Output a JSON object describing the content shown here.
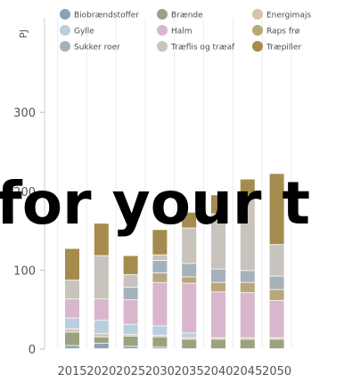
{
  "chart_data": {
    "type": "bar",
    "stacked": true,
    "ylabel": "PJ",
    "ylim": [
      0,
      400
    ],
    "yticks": [
      0,
      100,
      200,
      300
    ],
    "categories": [
      "2015",
      "2020",
      "2025",
      "2030",
      "2035",
      "2040",
      "2045",
      "2050"
    ],
    "grid": true,
    "legend_position": "top",
    "series": [
      {
        "name": "Biobrændstoffer",
        "color": "#8aa4b5",
        "values": [
          4,
          7,
          3,
          2,
          0,
          0,
          0,
          0
        ]
      },
      {
        "name": "Brænde",
        "color": "#9aa37e",
        "values": [
          17,
          8,
          13,
          13,
          12,
          12,
          12,
          12
        ]
      },
      {
        "name": "Energimajs",
        "color": "#d8c3a8",
        "values": [
          4,
          4,
          2,
          2,
          2,
          2,
          2,
          2
        ]
      },
      {
        "name": "Gylle",
        "color": "#b8cfe0",
        "values": [
          14,
          17,
          13,
          12,
          6,
          0,
          0,
          0
        ]
      },
      {
        "name": "Halm",
        "color": "#d8b7cd",
        "values": [
          24,
          27,
          31,
          55,
          63,
          58,
          57,
          47
        ]
      },
      {
        "name": "Raps frø",
        "color": "#b9a679",
        "values": [
          0,
          0,
          0,
          12,
          8,
          12,
          13,
          14
        ]
      },
      {
        "name": "Sukker roer",
        "color": "#a5b2ba",
        "values": [
          0,
          0,
          16,
          16,
          17,
          17,
          15,
          17
        ]
      },
      {
        "name": "Træflis og træaf",
        "color": "#c8c3bd",
        "values": [
          24,
          55,
          16,
          7,
          45,
          70,
          95,
          40
        ]
      },
      {
        "name": "Træpiller",
        "color": "#a58b4e",
        "values": [
          40,
          41,
          24,
          32,
          20,
          24,
          21,
          90
        ]
      }
    ]
  },
  "overlay_text": "for your t"
}
